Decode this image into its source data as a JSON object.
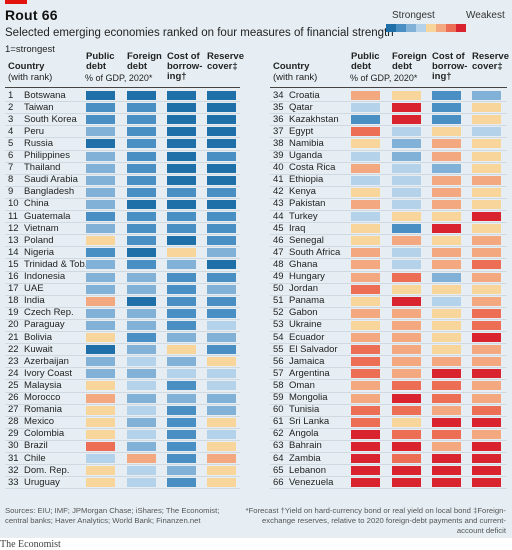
{
  "header": {
    "title": "Rout 66",
    "subtitle": "Selected emerging economies ranked on four measures of financial strength",
    "rank_note": "1=strongest"
  },
  "legend": {
    "strongest_label": "Strongest",
    "weakest_label": "Weakest",
    "scale_colors": [
      "#1f6fa8",
      "#4a8fc4",
      "#82b1d7",
      "#b4d2ea",
      "#f7d59b",
      "#f4a87f",
      "#ec6f55",
      "#d9232f"
    ]
  },
  "columns": {
    "country_label": "Country",
    "country_sub": "(with rank)",
    "public_debt": "Public debt",
    "public_debt_line1": "Public",
    "public_debt_line2": "debt",
    "foreign_debt_line1": "Foreign",
    "foreign_debt_line2": "debt",
    "cost_line1": "Cost of",
    "cost_line2": "borrow-",
    "cost_line3": "ing†",
    "reserve_line1": "Reserve",
    "reserve_line2": "cover‡",
    "pct_gdp": "% of GDP, 2020*"
  },
  "chart_data": {
    "type": "table",
    "title": "Rout 66",
    "subtitle": "Selected emerging economies ranked on four measures of financial strength",
    "measures": [
      "Public debt",
      "Foreign debt",
      "Cost of borrowing",
      "Reserve cover"
    ],
    "color_scale_note": "colour from Strongest (blue) to Weakest (red)",
    "rows": [
      {
        "rank": 1,
        "country": "Botswana",
        "levels": [
          1,
          1,
          1,
          1
        ]
      },
      {
        "rank": 2,
        "country": "Taiwan",
        "levels": [
          2,
          2,
          1,
          1
        ]
      },
      {
        "rank": 3,
        "country": "South Korea",
        "levels": [
          2,
          2,
          1,
          1
        ]
      },
      {
        "rank": 4,
        "country": "Peru",
        "levels": [
          3,
          2,
          1,
          1
        ]
      },
      {
        "rank": 5,
        "country": "Russia",
        "levels": [
          1,
          2,
          1,
          1
        ]
      },
      {
        "rank": 6,
        "country": "Philippines",
        "levels": [
          3,
          2,
          1,
          2
        ]
      },
      {
        "rank": 7,
        "country": "Thailand",
        "levels": [
          3,
          2,
          1,
          1
        ]
      },
      {
        "rank": 8,
        "country": "Saudi Arabia",
        "levels": [
          3,
          2,
          1,
          1
        ]
      },
      {
        "rank": 9,
        "country": "Bangladesh",
        "levels": [
          3,
          2,
          2,
          2
        ]
      },
      {
        "rank": 10,
        "country": "China",
        "levels": [
          3,
          1,
          1,
          1
        ]
      },
      {
        "rank": 11,
        "country": "Guatemala",
        "levels": [
          2,
          2,
          2,
          2
        ]
      },
      {
        "rank": 12,
        "country": "Vietnam",
        "levels": [
          3,
          2,
          2,
          2
        ]
      },
      {
        "rank": 13,
        "country": "Poland",
        "levels": [
          5,
          2,
          1,
          2
        ]
      },
      {
        "rank": 14,
        "country": "Nigeria",
        "levels": [
          2,
          1,
          5,
          3
        ]
      },
      {
        "rank": 15,
        "country": "Trinidad & Tob.",
        "levels": [
          3,
          2,
          3,
          1
        ]
      },
      {
        "rank": 16,
        "country": "Indonesia",
        "levels": [
          3,
          3,
          2,
          2
        ]
      },
      {
        "rank": 17,
        "country": "UAE",
        "levels": [
          3,
          3,
          2,
          3
        ]
      },
      {
        "rank": 18,
        "country": "India",
        "levels": [
          6,
          1,
          2,
          2
        ]
      },
      {
        "rank": 19,
        "country": "Czech Rep.",
        "levels": [
          3,
          3,
          2,
          2
        ]
      },
      {
        "rank": 20,
        "country": "Paraguay",
        "levels": [
          3,
          3,
          2,
          4
        ]
      },
      {
        "rank": 21,
        "country": "Bolivia",
        "levels": [
          5,
          2,
          3,
          3
        ]
      },
      {
        "rank": 22,
        "country": "Kuwait",
        "levels": [
          1,
          3,
          5,
          2
        ]
      },
      {
        "rank": 23,
        "country": "Azerbaijan",
        "levels": [
          3,
          4,
          3,
          5
        ]
      },
      {
        "rank": 24,
        "country": "Ivory Coast",
        "levels": [
          3,
          3,
          4,
          4
        ]
      },
      {
        "rank": 25,
        "country": "Malaysia",
        "levels": [
          5,
          4,
          2,
          4
        ]
      },
      {
        "rank": 26,
        "country": "Morocco",
        "levels": [
          6,
          3,
          3,
          3
        ]
      },
      {
        "rank": 27,
        "country": "Romania",
        "levels": [
          5,
          4,
          2,
          3
        ]
      },
      {
        "rank": 28,
        "country": "Mexico",
        "levels": [
          5,
          3,
          2,
          5
        ]
      },
      {
        "rank": 29,
        "country": "Colombia",
        "levels": [
          5,
          4,
          2,
          4
        ]
      },
      {
        "rank": 30,
        "country": "Brazil",
        "levels": [
          7,
          3,
          2,
          5
        ]
      },
      {
        "rank": 31,
        "country": "Chile",
        "levels": [
          4,
          6,
          2,
          6
        ]
      },
      {
        "rank": 32,
        "country": "Dom. Rep.",
        "levels": [
          5,
          4,
          3,
          5
        ]
      },
      {
        "rank": 33,
        "country": "Uruguay",
        "levels": [
          5,
          4,
          2,
          5
        ]
      },
      {
        "rank": 34,
        "country": "Croatia",
        "levels": [
          6,
          5,
          2,
          3
        ]
      },
      {
        "rank": 35,
        "country": "Qatar",
        "levels": [
          4,
          8,
          2,
          5
        ]
      },
      {
        "rank": 36,
        "country": "Kazakhstan",
        "levels": [
          2,
          8,
          2,
          5
        ]
      },
      {
        "rank": 37,
        "country": "Egypt",
        "levels": [
          7,
          4,
          5,
          4
        ]
      },
      {
        "rank": 38,
        "country": "Namibia",
        "levels": [
          5,
          3,
          6,
          5
        ]
      },
      {
        "rank": 39,
        "country": "Uganda",
        "levels": [
          4,
          3,
          6,
          5
        ]
      },
      {
        "rank": 40,
        "country": "Costa Rica",
        "levels": [
          6,
          4,
          3,
          5
        ]
      },
      {
        "rank": 41,
        "country": "Ethiopia",
        "levels": [
          4,
          4,
          6,
          6
        ]
      },
      {
        "rank": 42,
        "country": "Kenya",
        "levels": [
          5,
          4,
          6,
          5
        ]
      },
      {
        "rank": 43,
        "country": "Pakistan",
        "levels": [
          6,
          4,
          6,
          5
        ]
      },
      {
        "rank": 44,
        "country": "Turkey",
        "levels": [
          4,
          5,
          5,
          8
        ]
      },
      {
        "rank": 45,
        "country": "Iraq",
        "levels": [
          5,
          2,
          8,
          5
        ]
      },
      {
        "rank": 46,
        "country": "Senegal",
        "levels": [
          5,
          6,
          5,
          6
        ]
      },
      {
        "rank": 47,
        "country": "South Africa",
        "levels": [
          6,
          4,
          6,
          6
        ]
      },
      {
        "rank": 48,
        "country": "Ghana",
        "levels": [
          6,
          4,
          6,
          7
        ]
      },
      {
        "rank": 49,
        "country": "Hungary",
        "levels": [
          6,
          7,
          3,
          6
        ]
      },
      {
        "rank": 50,
        "country": "Jordan",
        "levels": [
          7,
          5,
          5,
          5
        ]
      },
      {
        "rank": 51,
        "country": "Panama",
        "levels": [
          5,
          8,
          4,
          6
        ]
      },
      {
        "rank": 52,
        "country": "Gabon",
        "levels": [
          6,
          6,
          5,
          7
        ]
      },
      {
        "rank": 53,
        "country": "Ukraine",
        "levels": [
          5,
          6,
          5,
          7
        ]
      },
      {
        "rank": 54,
        "country": "Ecuador",
        "levels": [
          6,
          6,
          5,
          8
        ]
      },
      {
        "rank": 55,
        "country": "El Salvador",
        "levels": [
          7,
          6,
          5,
          6
        ]
      },
      {
        "rank": 56,
        "country": "Jamaica",
        "levels": [
          7,
          6,
          6,
          6
        ]
      },
      {
        "rank": 57,
        "country": "Argentina",
        "levels": [
          7,
          6,
          8,
          8
        ]
      },
      {
        "rank": 58,
        "country": "Oman",
        "levels": [
          6,
          7,
          7,
          6
        ]
      },
      {
        "rank": 59,
        "country": "Mongolia",
        "levels": [
          6,
          8,
          7,
          6
        ]
      },
      {
        "rank": 60,
        "country": "Tunisia",
        "levels": [
          7,
          7,
          6,
          7
        ]
      },
      {
        "rank": 61,
        "country": "Sri Lanka",
        "levels": [
          7,
          5,
          8,
          8
        ]
      },
      {
        "rank": 62,
        "country": "Angola",
        "levels": [
          8,
          7,
          7,
          6
        ]
      },
      {
        "rank": 63,
        "country": "Bahrain",
        "levels": [
          8,
          8,
          6,
          8
        ]
      },
      {
        "rank": 64,
        "country": "Zambia",
        "levels": [
          8,
          7,
          8,
          8
        ]
      },
      {
        "rank": 65,
        "country": "Lebanon",
        "levels": [
          8,
          8,
          8,
          8
        ]
      },
      {
        "rank": 66,
        "country": "Venezuela",
        "levels": [
          8,
          8,
          8,
          8
        ]
      }
    ]
  },
  "footer": {
    "sources": "Sources: EIU; IMF; JPMorgan Chase; iShares; The Economist; central banks; Haver Analytics; World Bank; Finanzen.net",
    "footnote": "*Forecast  †Yield on hard-currency bond or real yield on local bond  ‡Foreign-exchange reserves, relative to 2020 foreign-debt payments and current-account deficit",
    "publisher": "The Economist"
  }
}
